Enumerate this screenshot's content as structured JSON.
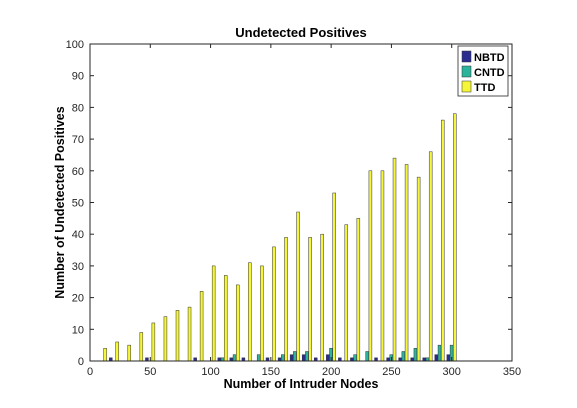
{
  "chart_data": {
    "type": "bar",
    "title": "Undetected Positives",
    "xlabel": "Number of Intruder Nodes",
    "ylabel": "Number of Undetected Positives",
    "xlim": [
      0,
      350
    ],
    "ylim": [
      0,
      100
    ],
    "xticks": [
      0,
      50,
      100,
      150,
      200,
      250,
      300,
      350
    ],
    "yticks": [
      0,
      10,
      20,
      30,
      40,
      50,
      60,
      70,
      80,
      90,
      100
    ],
    "grid": false,
    "legend_position": "top-right",
    "x": [
      10,
      20,
      30,
      40,
      50,
      60,
      70,
      80,
      90,
      100,
      110,
      120,
      130,
      140,
      150,
      160,
      170,
      180,
      190,
      200,
      210,
      220,
      230,
      240,
      250,
      260,
      270,
      280,
      290,
      300
    ],
    "series": [
      {
        "name": "NBTD",
        "color": "#2b2c8f",
        "values": [
          0,
          1,
          0,
          0,
          1,
          0,
          0,
          0,
          1,
          0,
          1,
          1,
          1,
          0,
          1,
          1,
          2,
          2,
          1,
          2,
          1,
          1,
          0,
          1,
          1,
          1,
          1,
          1,
          2,
          2
        ]
      },
      {
        "name": "CNTD",
        "color": "#2bb39c",
        "values": [
          0,
          0,
          0,
          0,
          0,
          0,
          0,
          0,
          0,
          0,
          1,
          2,
          0,
          2,
          0,
          2,
          3,
          3,
          0,
          4,
          0,
          2,
          3,
          0,
          2,
          3,
          4,
          1,
          5,
          5
        ]
      },
      {
        "name": "TTD",
        "color": "#f5f53a",
        "values": [
          4,
          6,
          5,
          9,
          12,
          14,
          16,
          17,
          22,
          30,
          27,
          24,
          31,
          30,
          36,
          39,
          47,
          39,
          40,
          53,
          43,
          45,
          60,
          60,
          64,
          62,
          58,
          66,
          76,
          78
        ]
      }
    ]
  }
}
